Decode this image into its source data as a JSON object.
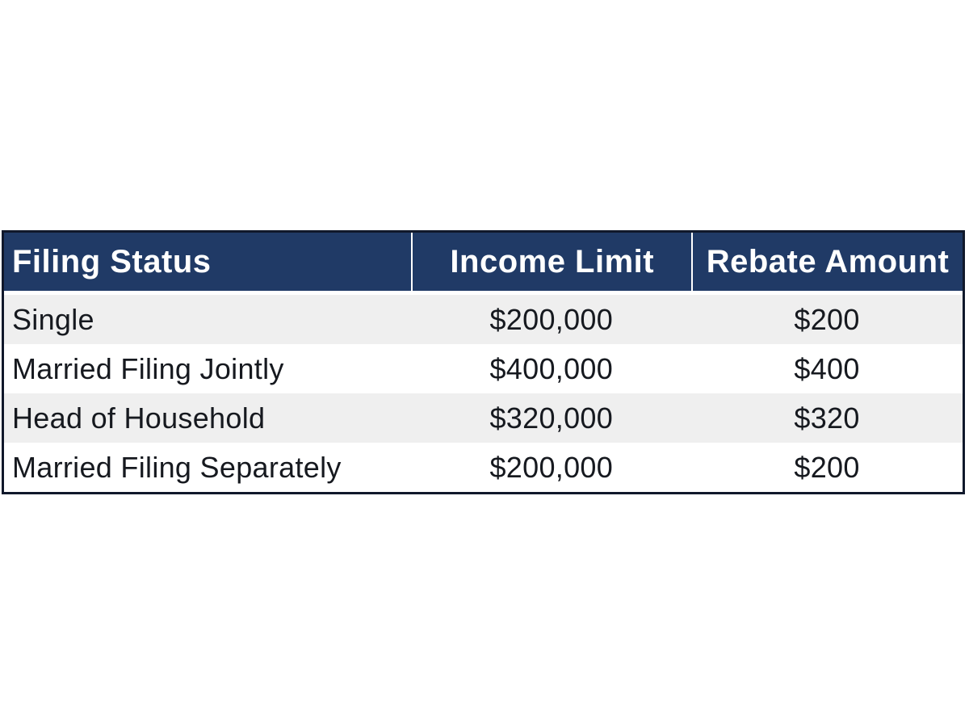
{
  "chart_data": {
    "type": "table",
    "columns": [
      "Filing Status",
      "Income Limit",
      "Rebate Amount"
    ],
    "rows": [
      [
        "Single",
        "$200,000",
        "$200"
      ],
      [
        "Married Filing Jointly",
        "$400,000",
        "$400"
      ],
      [
        "Head of Household",
        "$320,000",
        "$320"
      ],
      [
        "Married Filing Separately",
        "$200,000",
        "$200"
      ]
    ],
    "layout": {
      "column_alignments": [
        "left",
        "center",
        "center"
      ],
      "alternating_rows": true,
      "header_style": "dark-navy-with-white-dividers"
    }
  },
  "colors": {
    "header_bg": "#203a66",
    "header_text": "#ffffff",
    "row_even_bg": "#efefef",
    "row_odd_bg": "#ffffff",
    "body_text": "#16191f",
    "outer_border": "#10182b",
    "header_divider": "#ffffff",
    "canvas_bg": "#ffffff"
  }
}
